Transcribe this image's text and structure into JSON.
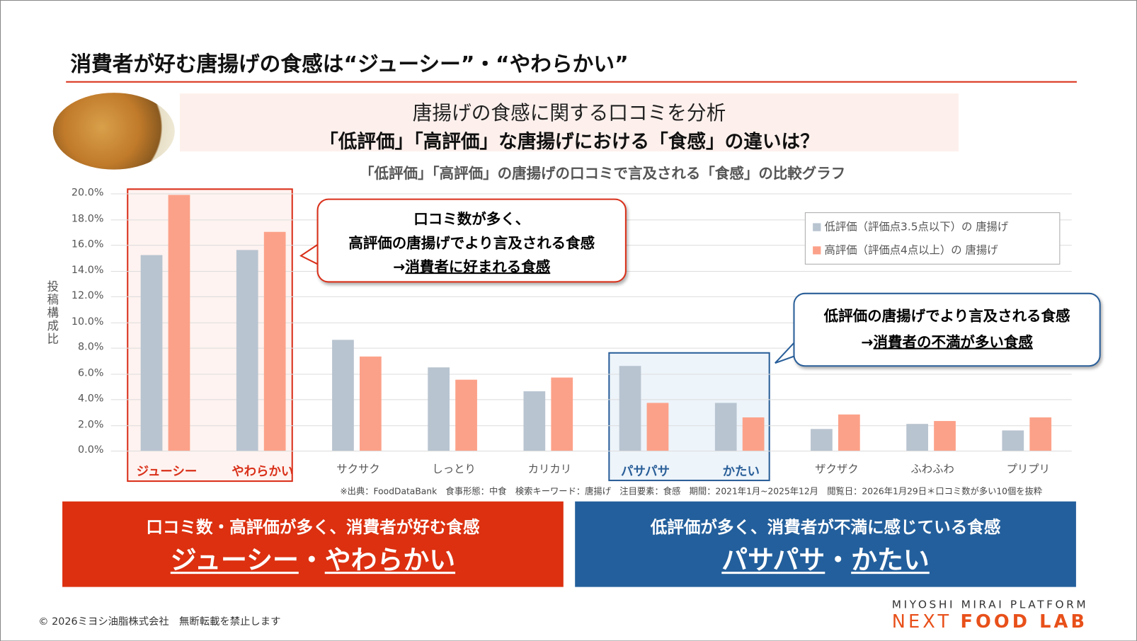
{
  "title": "消費者が好む唐揚げの食感は“ジューシー”・“やわらかい”",
  "header": {
    "line1": "唐揚げの食感に関する口コミを分析",
    "line2": "「低評価」「高評価」な唐揚げにおける「食感」の違いは？"
  },
  "callouts": {
    "positive": {
      "line1": "口コミ数が多く、",
      "line2": "高評価の唐揚げでより言及される食感",
      "line3_prefix": "→",
      "line3": "消費者に好まれる食感"
    },
    "negative": {
      "line1": "低評価の唐揚げでより言及される食感",
      "line2_prefix": "→",
      "line2": "消費者の不満が多い食感"
    }
  },
  "chart_data": {
    "type": "bar",
    "title": "「低評価」「高評価」の唐揚げの口コミで言及される「食感」の比較グラフ",
    "ylabel": "投稿構成比",
    "ylim": [
      0,
      20
    ],
    "yticks": [
      "0.0%",
      "2.0%",
      "4.0%",
      "6.0%",
      "8.0%",
      "10.0%",
      "12.0%",
      "14.0%",
      "16.0%",
      "18.0%",
      "20.0%"
    ],
    "grid": true,
    "legend_position": "top-right",
    "categories": [
      "ジューシー",
      "やわらかい",
      "サクサク",
      "しっとり",
      "カリカリ",
      "パサパサ",
      "かたい",
      "ザクザク",
      "ふわふわ",
      "プリプリ"
    ],
    "series": [
      {
        "name": "低評価（評価点3.5点以下）の 唐揚げ",
        "color": "#b8c4d0",
        "values": [
          15.2,
          15.6,
          8.6,
          6.5,
          4.6,
          6.6,
          3.7,
          1.7,
          2.1,
          1.6
        ]
      },
      {
        "name": "高評価（評価点4点以上）の 唐揚げ",
        "color": "#fca189",
        "values": [
          19.9,
          17.0,
          7.3,
          5.5,
          5.7,
          3.7,
          2.6,
          2.8,
          2.3,
          2.6
        ]
      }
    ],
    "highlight": {
      "positive": [
        "ジューシー",
        "やわらかい"
      ],
      "negative": [
        "パサパサ",
        "かたい"
      ]
    }
  },
  "source": "※出典：FoodDataBank　食事形態：中食　検索キーワード：唐揚げ　注目要素：食感　期間：2021年1月~2025年12月　閲覧日：2026年1月29日＊口コミ数が多い10個を抜粋",
  "summary": {
    "left": {
      "line1": "口コミ数・高評価が多く、消費者が好む食感",
      "word1": "ジューシー",
      "sep": "・",
      "word2": "やわらかい",
      "color": "#dc3010"
    },
    "right": {
      "line1": "低評価が多く、消費者が不満に感じている食感",
      "word1": "パサパサ",
      "sep": "・",
      "word2": "かたい",
      "color": "#235f9c"
    }
  },
  "footer": {
    "copyright": "© 2026ミヨシ油脂株式会社　無断転載を禁止します",
    "logo_top": "MIYOSHI MIRAI PLATFORM",
    "logo_next": "NEXT",
    "logo_food": "FOOD LAB"
  }
}
